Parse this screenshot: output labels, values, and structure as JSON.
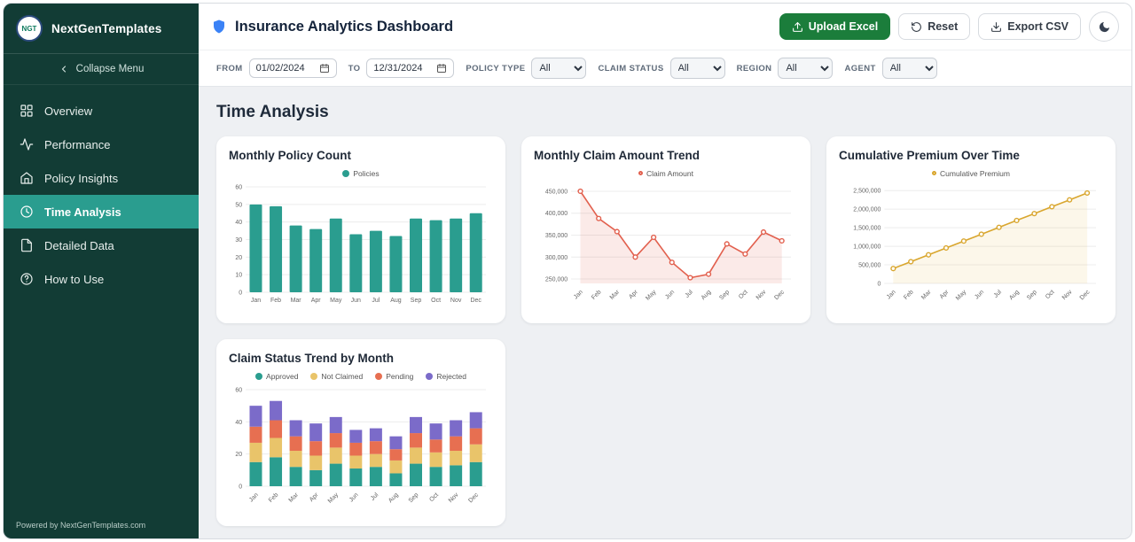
{
  "colors": {
    "sidebar_bg": "#123c35",
    "accent_teal": "#2a9d8f",
    "upload_green": "#1b7d3b",
    "claim_red": "#e2604e",
    "premium_gold": "#d9a62e",
    "rejected_purple": "#7b6bc9",
    "shield_blue": "#3b82f6"
  },
  "sidebar": {
    "logo_text": "NGT",
    "brand": "NextGenTemplates",
    "collapse_label": "Collapse Menu",
    "items": [
      {
        "label": "Overview",
        "icon": "grid-icon"
      },
      {
        "label": "Performance",
        "icon": "activity-icon"
      },
      {
        "label": "Policy Insights",
        "icon": "home-icon"
      },
      {
        "label": "Time Analysis",
        "icon": "clock-icon"
      },
      {
        "label": "Detailed Data",
        "icon": "file-icon"
      },
      {
        "label": "How to Use",
        "icon": "help-icon"
      }
    ],
    "footer": "Powered by NextGenTemplates.com"
  },
  "header": {
    "title": "Insurance Analytics Dashboard",
    "buttons": {
      "upload": "Upload Excel",
      "reset": "Reset",
      "export": "Export CSV"
    }
  },
  "filters": {
    "from": {
      "label": "FROM",
      "value": "01/02/2024"
    },
    "to": {
      "label": "TO",
      "value": "12/31/2024"
    },
    "policy_type": {
      "label": "POLICY TYPE",
      "value": "All"
    },
    "claim_status": {
      "label": "CLAIM STATUS",
      "value": "All"
    },
    "region": {
      "label": "REGION",
      "value": "All"
    },
    "agent": {
      "label": "AGENT",
      "value": "All"
    }
  },
  "section_title": "Time Analysis",
  "chart_data": [
    {
      "id": "policy-count",
      "type": "bar",
      "title": "Monthly Policy Count",
      "categories": [
        "Jan",
        "Feb",
        "Mar",
        "Apr",
        "May",
        "Jun",
        "Jul",
        "Aug",
        "Sep",
        "Oct",
        "Nov",
        "Dec"
      ],
      "values": [
        50,
        49,
        38,
        36,
        42,
        33,
        35,
        32,
        42,
        41,
        42,
        45
      ],
      "ylim": [
        0,
        60
      ],
      "yticks": [
        0,
        10,
        20,
        30,
        40,
        50,
        60
      ],
      "color": "#2a9d8f",
      "rotate_labels": false,
      "legend": [
        {
          "label": "Policies",
          "color": "#2a9d8f",
          "marker": "filled"
        }
      ]
    },
    {
      "id": "claim-trend",
      "type": "line",
      "title": "Monthly Claim Amount Trend",
      "categories": [
        "Jan",
        "Feb",
        "Mar",
        "Apr",
        "May",
        "Jun",
        "Jul",
        "Aug",
        "Sep",
        "Oct",
        "Nov",
        "Dec"
      ],
      "values": [
        450000,
        388000,
        358000,
        300000,
        345000,
        288000,
        253000,
        261000,
        330000,
        307000,
        357000,
        337000
      ],
      "ylim": [
        240000,
        460000
      ],
      "yticks": [
        250000,
        300000,
        350000,
        400000,
        450000
      ],
      "color": "#e2604e",
      "fill": "rgba(226,96,78,0.13)",
      "rotate_labels": true,
      "legend": [
        {
          "label": "Claim Amount",
          "color": "#e2604e",
          "marker": "open"
        }
      ]
    },
    {
      "id": "cumulative-premium",
      "type": "line",
      "title": "Cumulative Premium Over Time",
      "categories": [
        "Jan",
        "Feb",
        "Mar",
        "Apr",
        "May",
        "Jun",
        "Jul",
        "Aug",
        "Sep",
        "Oct",
        "Nov",
        "Dec"
      ],
      "values": [
        400000,
        585000,
        770000,
        955000,
        1140000,
        1325000,
        1510000,
        1695000,
        1880000,
        2065000,
        2250000,
        2435000
      ],
      "ylim": [
        0,
        2600000
      ],
      "yticks": [
        0,
        500000,
        1000000,
        1500000,
        2000000,
        2500000
      ],
      "color": "#d9a62e",
      "fill": "rgba(233,196,106,0.14)",
      "rotate_labels": true,
      "legend": [
        {
          "label": "Cumulative Premium",
          "color": "#d9a62e",
          "marker": "open"
        }
      ]
    },
    {
      "id": "claim-status",
      "type": "stacked-bar",
      "title": "Claim Status Trend by Month",
      "categories": [
        "Jan",
        "Feb",
        "Mar",
        "Apr",
        "May",
        "Jun",
        "Jul",
        "Aug",
        "Sep",
        "Oct",
        "Nov",
        "Dec"
      ],
      "series": [
        {
          "name": "Approved",
          "color": "#2a9d8f",
          "values": [
            15,
            18,
            12,
            10,
            14,
            11,
            12,
            8,
            14,
            12,
            13,
            15
          ]
        },
        {
          "name": "Not Claimed",
          "color": "#e9c46a",
          "values": [
            12,
            12,
            10,
            9,
            10,
            8,
            8,
            8,
            10,
            9,
            9,
            11
          ]
        },
        {
          "name": "Pending",
          "color": "#e76f51",
          "values": [
            10,
            11,
            9,
            9,
            9,
            8,
            8,
            7,
            9,
            8,
            9,
            10
          ]
        },
        {
          "name": "Rejected",
          "color": "#7b6bc9",
          "values": [
            13,
            12,
            10,
            11,
            10,
            8,
            8,
            8,
            10,
            10,
            10,
            10
          ]
        }
      ],
      "ylim": [
        0,
        60
      ],
      "yticks": [
        0,
        20,
        40,
        60
      ],
      "rotate_labels": true,
      "legend": [
        {
          "label": "Approved",
          "color": "#2a9d8f",
          "marker": "filled"
        },
        {
          "label": "Not Claimed",
          "color": "#e9c46a",
          "marker": "filled"
        },
        {
          "label": "Pending",
          "color": "#e76f51",
          "marker": "filled"
        },
        {
          "label": "Rejected",
          "color": "#7b6bc9",
          "marker": "filled"
        }
      ]
    }
  ]
}
